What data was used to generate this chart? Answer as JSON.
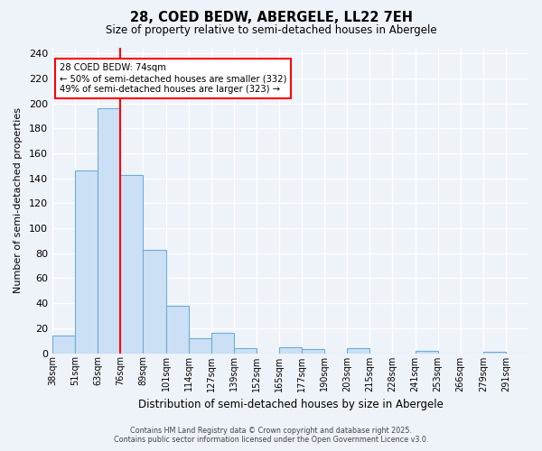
{
  "title": "28, COED BEDW, ABERGELE, LL22 7EH",
  "subtitle": "Size of property relative to semi-detached houses in Abergele",
  "xlabel": "Distribution of semi-detached houses by size in Abergele",
  "ylabel": "Number of semi-detached properties",
  "bin_labels": [
    "38sqm",
    "51sqm",
    "63sqm",
    "76sqm",
    "89sqm",
    "101sqm",
    "114sqm",
    "127sqm",
    "139sqm",
    "152sqm",
    "165sqm",
    "177sqm",
    "190sqm",
    "203sqm",
    "215sqm",
    "228sqm",
    "241sqm",
    "253sqm",
    "266sqm",
    "279sqm",
    "291sqm"
  ],
  "values": [
    14,
    146,
    196,
    143,
    83,
    38,
    12,
    16,
    4,
    0,
    5,
    3,
    0,
    4,
    0,
    0,
    2,
    0,
    0,
    1,
    0
  ],
  "bar_color": "#cce0f5",
  "bar_edge_color": "#6aaed6",
  "vline_pos": 3,
  "vline_color": "red",
  "annotation_text": "28 COED BEDW: 74sqm\n← 50% of semi-detached houses are smaller (332)\n49% of semi-detached houses are larger (323) →",
  "annotation_box_color": "white",
  "annotation_box_edge_color": "red",
  "ylim": [
    0,
    245
  ],
  "yticks": [
    0,
    20,
    40,
    60,
    80,
    100,
    120,
    140,
    160,
    180,
    200,
    220,
    240
  ],
  "background_color": "#eef2f9",
  "grid_color": "#ffffff",
  "footer_line1": "Contains HM Land Registry data © Crown copyright and database right 2025.",
  "footer_line2": "Contains public sector information licensed under the Open Government Licence v3.0."
}
